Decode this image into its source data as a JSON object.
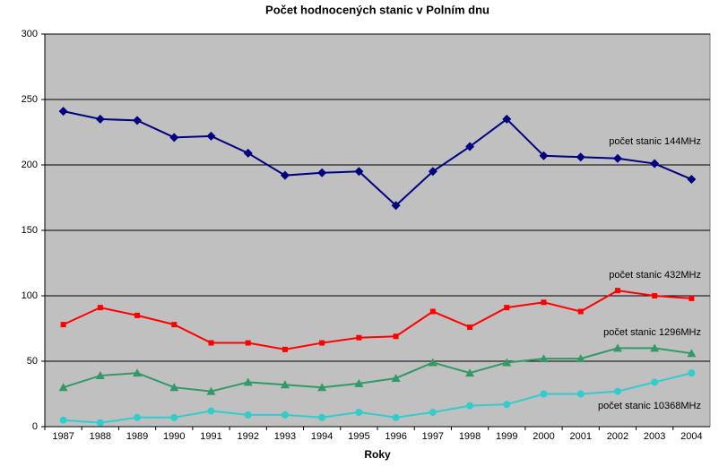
{
  "chart_data": {
    "type": "line",
    "title": "Počet hodnocených stanic v Polním dnu",
    "x_label": "Roky",
    "categories": [
      "1987",
      "1988",
      "1989",
      "1990",
      "1991",
      "1992",
      "1993",
      "1994",
      "1995",
      "1996",
      "1997",
      "1998",
      "1999",
      "2000",
      "2001",
      "2002",
      "2003",
      "2004"
    ],
    "ylim": [
      0,
      300
    ],
    "yticks": [
      0,
      50,
      100,
      150,
      200,
      250,
      300
    ],
    "grid": true,
    "series": [
      {
        "name": "počet stanic 144MHz",
        "color": "#000080",
        "marker": "diamond",
        "values": [
          241,
          235,
          234,
          221,
          222,
          209,
          192,
          194,
          195,
          169,
          195,
          214,
          235,
          207,
          206,
          205,
          201,
          189
        ]
      },
      {
        "name": "počet stanic 432MHz",
        "color": "#ff0000",
        "marker": "square",
        "values": [
          78,
          91,
          85,
          78,
          64,
          64,
          59,
          64,
          68,
          69,
          88,
          76,
          91,
          95,
          88,
          104,
          100,
          98
        ]
      },
      {
        "name": "počet stanic 1296MHz",
        "color": "#339966",
        "marker": "triangle",
        "values": [
          30,
          39,
          41,
          30,
          27,
          34,
          32,
          30,
          33,
          37,
          49,
          41,
          49,
          52,
          52,
          60,
          60,
          56
        ]
      },
      {
        "name": "počet stanic 10368MHz",
        "color": "#33cccc",
        "marker": "circle",
        "values": [
          5,
          3,
          7,
          7,
          12,
          9,
          9,
          7,
          11,
          7,
          11,
          16,
          17,
          25,
          25,
          27,
          34,
          41
        ]
      }
    ]
  }
}
